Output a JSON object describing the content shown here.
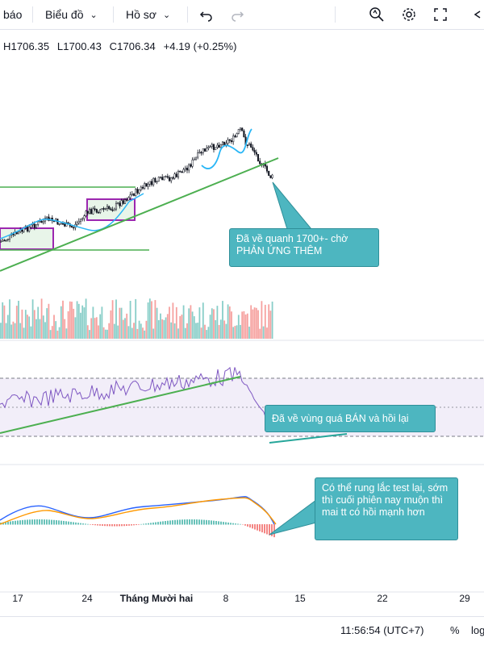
{
  "toolbar": {
    "alerts_label": "báo",
    "chart_label": "Biểu đồ",
    "profile_label": "Hồ sơ"
  },
  "ohlc": {
    "high": "H1706.35",
    "low": "L1700.43",
    "close": "C1706.34",
    "change": "+4.19 (+0.25%)"
  },
  "callouts": {
    "price": "Đã về quanh 1700+- chờ PHẢN ỨNG THÊM",
    "rsi": "Đã về vùng quá BÁN và hồi lại",
    "macd": "Có thể rung lắc test lại, sớm thì cuối phiên nay muộn thì mai tt có hồi mạnh hơn"
  },
  "xaxis": {
    "labels": [
      "17",
      "24",
      "Tháng Mười hai",
      "8",
      "15",
      "22",
      "29"
    ]
  },
  "status": {
    "time": "11:56:54 (UTC+7)",
    "percent": "%",
    "log": "log"
  },
  "colors": {
    "up_candle": "#26a69a",
    "down_candle": "#ef5350",
    "trendline": "#4caf50",
    "box": "#9c27b0",
    "callout": "#4db6c0",
    "rsi_band": "#ede7f6"
  }
}
